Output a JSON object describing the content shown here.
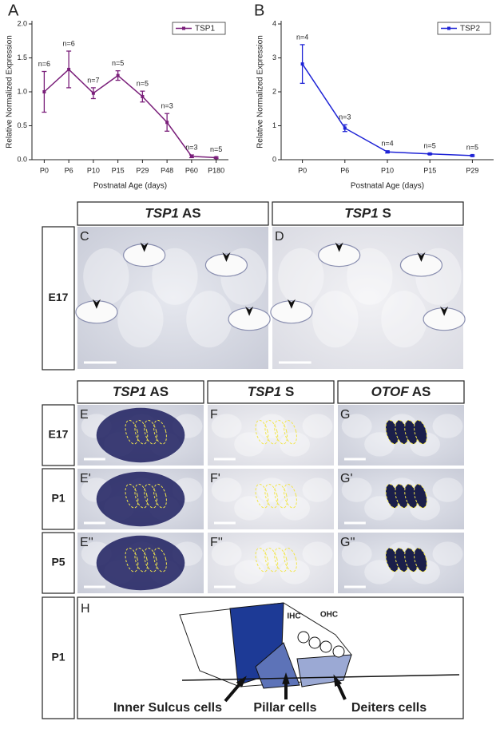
{
  "chart_data": [
    {
      "type": "line",
      "label": "A",
      "x_label": "Postnatal Age (days)",
      "y_label": "Relative Normalized Expression",
      "categories": [
        "P0",
        "P6",
        "P10",
        "P15",
        "P29",
        "P48",
        "P60",
        "P180"
      ],
      "series": [
        {
          "name": "TSP1",
          "color": "#7a1f7a",
          "values": [
            1.0,
            1.33,
            0.98,
            1.24,
            0.93,
            0.55,
            0.05,
            0.03
          ],
          "errors": [
            0.3,
            0.27,
            0.08,
            0.07,
            0.08,
            0.13,
            0.02,
            0.01
          ]
        }
      ],
      "n_labels": [
        "n=6",
        "n=6",
        "n=7",
        "n=5",
        "n=5",
        "n=3",
        "n=3",
        "n=5"
      ],
      "ylim": [
        0,
        2
      ],
      "yticks": [
        {
          "value": 0,
          "label": "0.0"
        },
        0.5,
        {
          "value": 1,
          "label": "1.0"
        },
        1.5,
        {
          "value": 2,
          "label": "2.0"
        }
      ],
      "legend": "top-right"
    },
    {
      "type": "line",
      "label": "B",
      "x_label": "Postnatal Age (days)",
      "y_label": "Relative Normalized Expression",
      "categories": [
        "P0",
        "P6",
        "P10",
        "P15",
        "P29"
      ],
      "series": [
        {
          "name": "TSP2",
          "color": "#1f24d6",
          "values": [
            2.82,
            0.93,
            0.23,
            0.17,
            0.12
          ],
          "errors": [
            0.57,
            0.1,
            0.03,
            0.02,
            0.02
          ]
        }
      ],
      "n_labels": [
        "n=4",
        "n=3",
        "n=4",
        "n=5",
        "n=5"
      ],
      "ylim": [
        0,
        4
      ],
      "yticks": [
        0,
        1,
        2,
        3,
        4
      ],
      "legend": "top-right"
    }
  ],
  "section_cd": {
    "headers": [
      {
        "gene": "TSP1",
        "probe": "AS"
      },
      {
        "gene": "TSP1",
        "probe": "S"
      }
    ],
    "row_label": "E17",
    "panels": [
      "C",
      "D"
    ]
  },
  "section_efg": {
    "headers": [
      {
        "gene": "TSP1",
        "probe": "AS"
      },
      {
        "gene": "TSP1",
        "probe": "S"
      },
      {
        "gene": "OTOF",
        "probe": "AS"
      }
    ],
    "rows": [
      {
        "label": "E17",
        "panels": [
          "E",
          "F",
          "G"
        ]
      },
      {
        "label": "P1",
        "panels": [
          "E'",
          "F'",
          "G'"
        ]
      },
      {
        "label": "P5",
        "panels": [
          "E''",
          "F''",
          "G''"
        ]
      }
    ]
  },
  "section_h": {
    "row_label": "P1",
    "panel": "H",
    "ihc": "IHC",
    "ohc": "OHC",
    "cells": [
      "Inner Sulcus cells",
      "Pillar cells",
      "Deiters cells"
    ]
  }
}
